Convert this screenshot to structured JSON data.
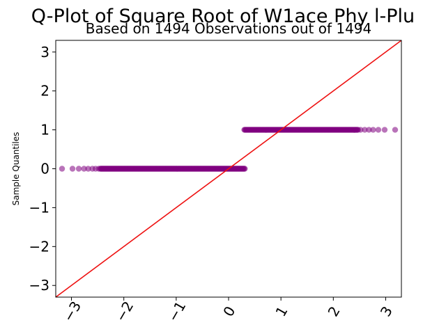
{
  "chart_data": {
    "type": "scatter",
    "title": "Q-Plot of Square Root of W1ace Phy l-Plu",
    "subtitle": "Based on 1494 Observations out of 1494",
    "xlabel": "",
    "ylabel": "Sample Quantiles",
    "xlim": [
      -3.3,
      3.3
    ],
    "ylim": [
      -3.3,
      3.3
    ],
    "x_ticks": [
      -3,
      -2,
      -1,
      0,
      1,
      2,
      3
    ],
    "x_tick_labels": [
      "−3",
      "−2",
      "−1",
      "0",
      "1",
      "2",
      "3"
    ],
    "y_ticks": [
      -3,
      -2,
      -1,
      0,
      1,
      2,
      3
    ],
    "y_tick_labels": [
      "−3",
      "−2",
      "−1",
      "0",
      "1",
      "2",
      "3"
    ],
    "grid": false,
    "reference_line": {
      "slope": 1,
      "intercept": 0,
      "color": "#ee1111"
    },
    "marker_color": "#800080",
    "series": [
      {
        "y": 0,
        "sparse_x": [
          -3.18,
          -2.98,
          -2.86,
          -2.76,
          -2.68,
          -2.6,
          -2.54,
          -2.48
        ],
        "dense_x_range": [
          -2.45,
          0.32
        ]
      },
      {
        "y": 1,
        "dense_x_range": [
          0.3,
          2.48
        ],
        "sparse_x": [
          2.52,
          2.6,
          2.68,
          2.76,
          2.86,
          2.98,
          3.18
        ]
      }
    ]
  }
}
